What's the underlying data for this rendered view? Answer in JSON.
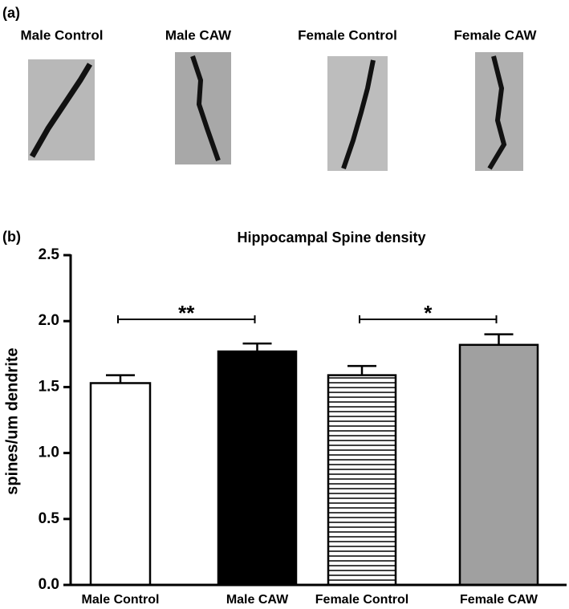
{
  "panel_labels": [
    "(a)",
    "(b)"
  ],
  "images": [
    "Male Control",
    "Male CAW",
    "Female Control",
    "Female CAW"
  ],
  "chart_data": {
    "type": "bar",
    "title": "Hippocampal Spine density",
    "y_label": "spines/um dendrite",
    "categories": [
      "Male Control",
      "Male CAW",
      "Female Control",
      "Female CAW"
    ],
    "values": [
      1.53,
      1.77,
      1.59,
      1.82
    ],
    "errors": [
      0.06,
      0.06,
      0.07,
      0.08
    ],
    "fills": [
      "white",
      "black",
      "stripes",
      "#a0a0a0"
    ],
    "annotations": [
      "**",
      "*"
    ],
    "ylim": [
      0,
      2.5
    ],
    "yticks": [
      {
        "value": 0,
        "label": "0.0"
      },
      0.5,
      {
        "value": 1,
        "label": "1.0"
      },
      1.5,
      {
        "value": 2,
        "label": "2.0"
      },
      2.5
    ]
  }
}
